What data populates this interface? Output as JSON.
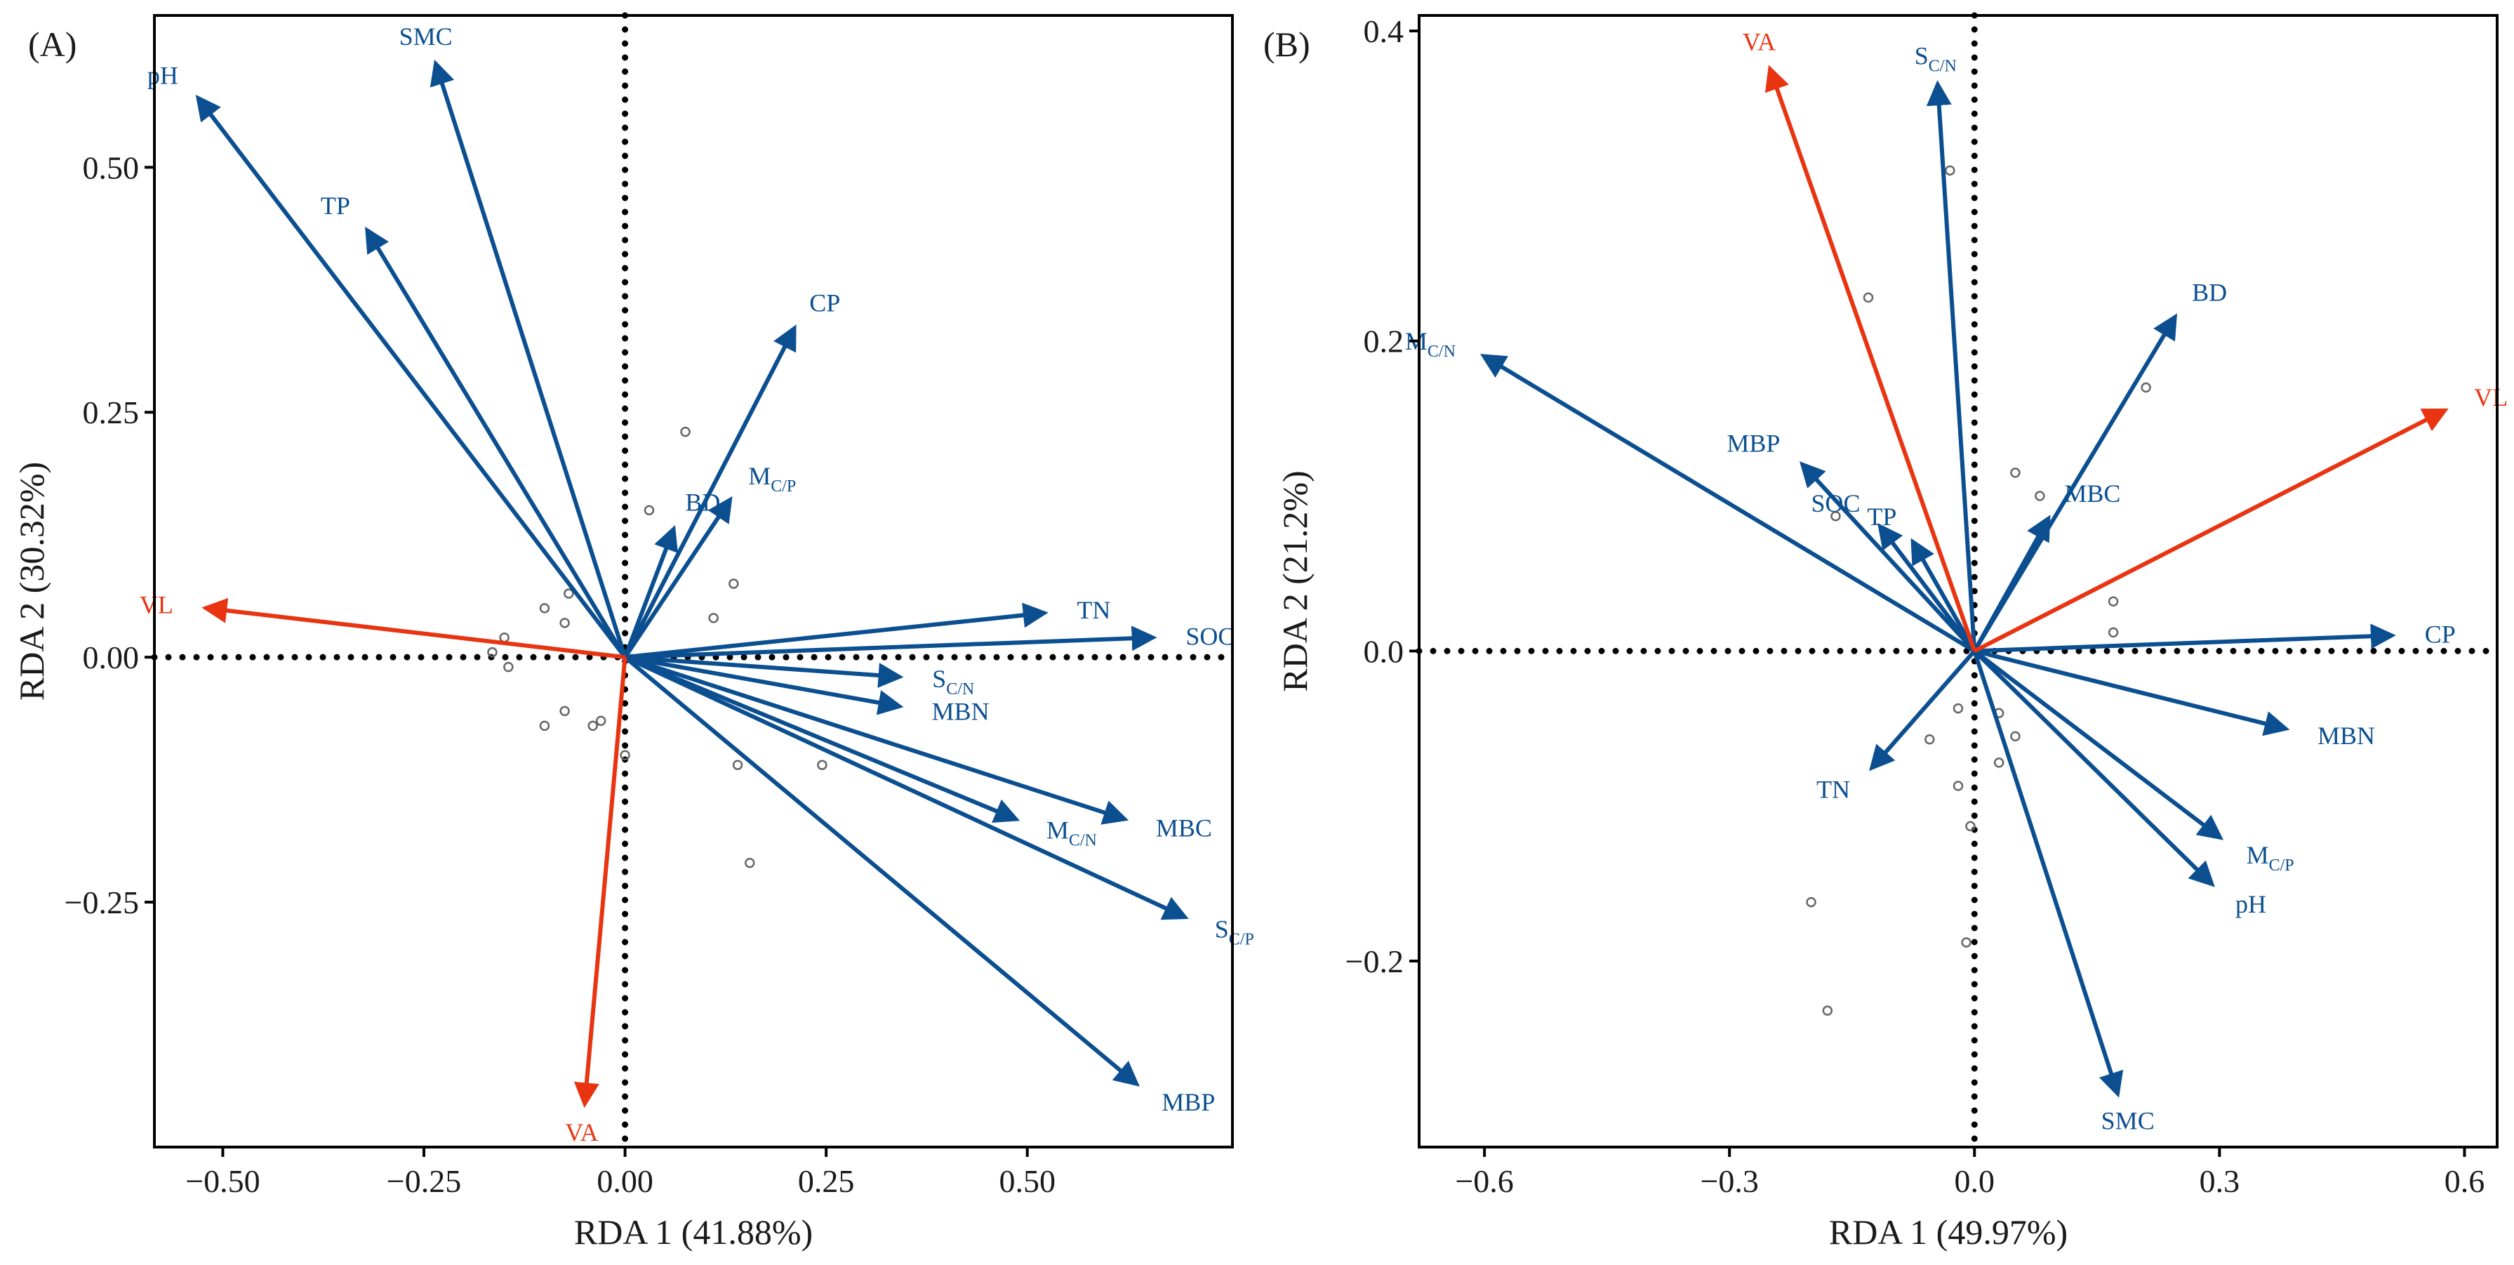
{
  "colors": {
    "env": "#0B4F91",
    "veg": "#E83411",
    "axis": "#000000",
    "point": "#666666"
  },
  "chart_data": [
    {
      "type": "scatter",
      "panel_label": "(A)",
      "xlabel": "RDA 1 (41.88%)",
      "ylabel": "RDA 2 (30.32%)",
      "xlim": [
        -0.585,
        0.755
      ],
      "ylim": [
        -0.5,
        0.655
      ],
      "xticks": [
        -0.5,
        -0.25,
        0,
        0.25,
        0.5
      ],
      "xtick_labels": [
        "−0.50",
        "−0.25",
        "0.00",
        "0.25",
        "0.50"
      ],
      "yticks": [
        -0.25,
        0,
        0.25,
        0.5
      ],
      "ytick_labels": [
        "−0.25",
        "0.00",
        "0.25",
        "0.50"
      ],
      "vectors": [
        {
          "name": "pH",
          "x": -0.53,
          "y": 0.57,
          "group": "env"
        },
        {
          "name": "SMC",
          "x": -0.235,
          "y": 0.605,
          "group": "env"
        },
        {
          "name": "TP",
          "x": -0.32,
          "y": 0.435,
          "group": "env"
        },
        {
          "name": "CP",
          "x": 0.21,
          "y": 0.335,
          "group": "env"
        },
        {
          "name": "BD",
          "x": 0.06,
          "y": 0.13,
          "group": "env"
        },
        {
          "name": "M",
          "sub": "C/P",
          "x": 0.13,
          "y": 0.16,
          "group": "env"
        },
        {
          "name": "TN",
          "x": 0.52,
          "y": 0.045,
          "group": "env"
        },
        {
          "name": "SOC",
          "x": 0.655,
          "y": 0.02,
          "group": "env"
        },
        {
          "name": "S",
          "sub": "C/N",
          "x": 0.34,
          "y": -0.02,
          "group": "env"
        },
        {
          "name": "MBN",
          "x": 0.34,
          "y": -0.05,
          "group": "env"
        },
        {
          "name": "M",
          "sub": "C/N",
          "x": 0.485,
          "y": -0.165,
          "group": "env"
        },
        {
          "name": "MBC",
          "x": 0.62,
          "y": -0.165,
          "group": "env"
        },
        {
          "name": "S",
          "sub": "C/P",
          "x": 0.695,
          "y": -0.265,
          "group": "env"
        },
        {
          "name": "MBP",
          "x": 0.635,
          "y": -0.435,
          "group": "env"
        },
        {
          "name": "VL",
          "x": -0.52,
          "y": 0.05,
          "group": "veg"
        },
        {
          "name": "VA",
          "x": -0.05,
          "y": -0.455,
          "group": "veg"
        }
      ],
      "points": [
        {
          "x": 0.075,
          "y": 0.23
        },
        {
          "x": 0.03,
          "y": 0.15
        },
        {
          "x": 0.135,
          "y": 0.075
        },
        {
          "x": 0.11,
          "y": 0.04
        },
        {
          "x": -0.1,
          "y": 0.05
        },
        {
          "x": -0.07,
          "y": 0.065
        },
        {
          "x": -0.075,
          "y": 0.035
        },
        {
          "x": -0.15,
          "y": 0.02
        },
        {
          "x": -0.165,
          "y": 0.005
        },
        {
          "x": -0.145,
          "y": -0.01
        },
        {
          "x": -0.075,
          "y": -0.055
        },
        {
          "x": -0.1,
          "y": -0.07
        },
        {
          "x": -0.04,
          "y": -0.07
        },
        {
          "x": -0.03,
          "y": -0.065
        },
        {
          "x": 0.0,
          "y": -0.1
        },
        {
          "x": 0.14,
          "y": -0.11
        },
        {
          "x": 0.245,
          "y": -0.11
        },
        {
          "x": 0.155,
          "y": -0.21
        }
      ]
    },
    {
      "type": "scatter",
      "panel_label": "(B)",
      "xlabel": "RDA 1 (49.97%)",
      "ylabel": "RDA 2 (21.2%)",
      "xlim": [
        -0.68,
        0.64
      ],
      "ylim": [
        -0.32,
        0.41
      ],
      "xticks": [
        -0.6,
        -0.3,
        0,
        0.3,
        0.6
      ],
      "xtick_labels": [
        "−0.6",
        "−0.3",
        "0.0",
        "0.3",
        "0.6"
      ],
      "yticks": [
        -0.2,
        0,
        0.2,
        0.4
      ],
      "ytick_labels": [
        "−0.2",
        "0.0",
        "0.2",
        "0.4"
      ],
      "vectors": [
        {
          "name": "S",
          "sub": "C/N",
          "x": -0.045,
          "y": 0.365,
          "group": "env"
        },
        {
          "name": "M",
          "sub": "C/N",
          "x": -0.6,
          "y": 0.19,
          "group": "env"
        },
        {
          "name": "BD",
          "x": 0.245,
          "y": 0.215,
          "group": "env"
        },
        {
          "name": "MBP",
          "x": -0.21,
          "y": 0.12,
          "group": "env"
        },
        {
          "name": "SOC",
          "x": -0.115,
          "y": 0.08,
          "group": "env"
        },
        {
          "name": "TP",
          "x": -0.075,
          "y": 0.07,
          "group": "env"
        },
        {
          "name": "MBC",
          "x": 0.09,
          "y": 0.085,
          "group": "env"
        },
        {
          "name": "CP",
          "x": 0.51,
          "y": 0.01,
          "group": "env"
        },
        {
          "name": "MBN",
          "x": 0.38,
          "y": -0.05,
          "group": "env"
        },
        {
          "name": "M",
          "sub": "C/P",
          "x": 0.3,
          "y": -0.12,
          "group": "env"
        },
        {
          "name": "pH",
          "x": 0.29,
          "y": -0.15,
          "group": "env"
        },
        {
          "name": "TN",
          "x": -0.125,
          "y": -0.075,
          "group": "env"
        },
        {
          "name": "SMC",
          "x": 0.175,
          "y": -0.285,
          "group": "env"
        },
        {
          "name": "VA",
          "x": -0.25,
          "y": 0.375,
          "group": "veg"
        },
        {
          "name": "VL",
          "x": 0.575,
          "y": 0.155,
          "group": "veg"
        }
      ],
      "points": [
        {
          "x": -0.03,
          "y": 0.31
        },
        {
          "x": -0.13,
          "y": 0.228
        },
        {
          "x": 0.21,
          "y": 0.17
        },
        {
          "x": 0.05,
          "y": 0.115
        },
        {
          "x": 0.08,
          "y": 0.1
        },
        {
          "x": -0.17,
          "y": 0.087
        },
        {
          "x": 0.17,
          "y": 0.032
        },
        {
          "x": 0.17,
          "y": 0.012
        },
        {
          "x": -0.02,
          "y": -0.037
        },
        {
          "x": 0.03,
          "y": -0.04
        },
        {
          "x": 0.05,
          "y": -0.055
        },
        {
          "x": -0.055,
          "y": -0.057
        },
        {
          "x": 0.03,
          "y": -0.072
        },
        {
          "x": -0.02,
          "y": -0.087
        },
        {
          "x": -0.005,
          "y": -0.113
        },
        {
          "x": -0.2,
          "y": -0.162
        },
        {
          "x": -0.01,
          "y": -0.188
        },
        {
          "x": -0.18,
          "y": -0.232
        }
      ]
    }
  ]
}
